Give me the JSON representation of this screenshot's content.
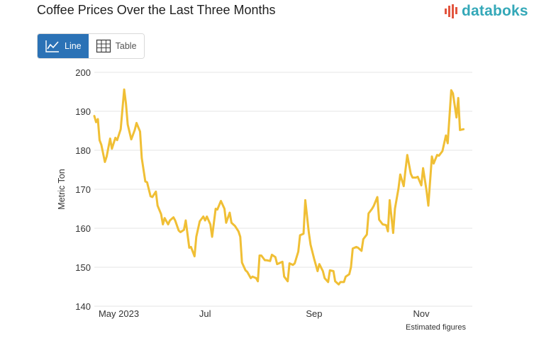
{
  "header": {
    "title": "Coffee Prices Over the Last Three Months",
    "logo_text": "databoks"
  },
  "toggle": {
    "line_label": "Line",
    "table_label": "Table",
    "selected": "Line"
  },
  "colors": {
    "line": "#f0bf35",
    "accent": "#2b72b6",
    "brand": "#34a8b8",
    "logo_mark": "#e2553f",
    "grid": "#e6e6e6"
  },
  "chart_data": {
    "type": "line",
    "ylabel": "Metric Ton",
    "ylim": [
      140,
      200
    ],
    "yticks": [
      "140",
      "150",
      "160",
      "170",
      "180",
      "190",
      "200"
    ],
    "xlim": [
      "2023-04-29",
      "2023-11-30"
    ],
    "xticks": [
      {
        "label": "May 2023",
        "date": "2023-05-01"
      },
      {
        "label": "Jul",
        "date": "2023-07-01"
      },
      {
        "label": "Sep",
        "date": "2023-09-01"
      },
      {
        "label": "Nov",
        "date": "2023-11-01"
      }
    ],
    "grid": true,
    "note": "Estimated figures",
    "series": [
      {
        "values": [
          [
            "2023-04-29",
            188.8
          ],
          [
            "2023-04-30",
            187.2
          ],
          [
            "2023-05-01",
            188.0
          ],
          [
            "2023-05-02",
            182.6
          ],
          [
            "2023-05-03",
            181.4
          ],
          [
            "2023-05-05",
            177.0
          ],
          [
            "2023-05-06",
            178.4
          ],
          [
            "2023-05-08",
            183.0
          ],
          [
            "2023-05-09",
            180.4
          ],
          [
            "2023-05-11",
            183.2
          ],
          [
            "2023-05-12",
            182.6
          ],
          [
            "2023-05-14",
            185.4
          ],
          [
            "2023-05-16",
            195.6
          ],
          [
            "2023-05-17",
            192.0
          ],
          [
            "2023-05-18",
            186.6
          ],
          [
            "2023-05-20",
            182.8
          ],
          [
            "2023-05-22",
            185.2
          ],
          [
            "2023-05-23",
            187.0
          ],
          [
            "2023-05-25",
            184.8
          ],
          [
            "2023-05-26",
            178.0
          ],
          [
            "2023-05-28",
            172.0
          ],
          [
            "2023-05-29",
            171.8
          ],
          [
            "2023-05-31",
            168.2
          ],
          [
            "2023-06-01",
            168.0
          ],
          [
            "2023-06-03",
            169.4
          ],
          [
            "2023-06-04",
            165.8
          ],
          [
            "2023-06-06",
            163.6
          ],
          [
            "2023-06-07",
            161.0
          ],
          [
            "2023-06-08",
            162.6
          ],
          [
            "2023-06-10",
            161.0
          ],
          [
            "2023-06-11",
            162.0
          ],
          [
            "2023-06-13",
            162.8
          ],
          [
            "2023-06-14",
            162.0
          ],
          [
            "2023-06-16",
            159.4
          ],
          [
            "2023-06-17",
            159.0
          ],
          [
            "2023-06-19",
            159.6
          ],
          [
            "2023-06-20",
            162.0
          ],
          [
            "2023-06-22",
            155.0
          ],
          [
            "2023-06-23",
            155.2
          ],
          [
            "2023-06-25",
            152.8
          ],
          [
            "2023-06-26",
            157.8
          ],
          [
            "2023-06-28",
            161.8
          ],
          [
            "2023-06-30",
            163.0
          ],
          [
            "2023-07-01",
            162.0
          ],
          [
            "2023-07-02",
            163.0
          ],
          [
            "2023-07-04",
            161.0
          ],
          [
            "2023-07-05",
            157.8
          ],
          [
            "2023-07-07",
            165.0
          ],
          [
            "2023-07-08",
            164.8
          ],
          [
            "2023-07-10",
            167.0
          ],
          [
            "2023-07-12",
            165.0
          ],
          [
            "2023-07-13",
            161.4
          ],
          [
            "2023-07-15",
            164.0
          ],
          [
            "2023-07-16",
            161.4
          ],
          [
            "2023-07-18",
            160.6
          ],
          [
            "2023-07-20",
            159.2
          ],
          [
            "2023-07-21",
            157.8
          ],
          [
            "2023-07-22",
            151.2
          ],
          [
            "2023-07-24",
            149.2
          ],
          [
            "2023-07-25",
            148.8
          ],
          [
            "2023-07-27",
            147.2
          ],
          [
            "2023-07-28",
            147.6
          ],
          [
            "2023-07-30",
            147.2
          ],
          [
            "2023-07-31",
            146.4
          ],
          [
            "2023-08-01",
            153.0
          ],
          [
            "2023-08-02",
            153.0
          ],
          [
            "2023-08-04",
            151.8
          ],
          [
            "2023-08-05",
            151.8
          ],
          [
            "2023-08-07",
            151.6
          ],
          [
            "2023-08-08",
            153.2
          ],
          [
            "2023-08-10",
            152.6
          ],
          [
            "2023-08-11",
            150.8
          ],
          [
            "2023-08-13",
            151.2
          ],
          [
            "2023-08-14",
            151.4
          ],
          [
            "2023-08-15",
            147.6
          ],
          [
            "2023-08-17",
            146.4
          ],
          [
            "2023-08-18",
            151.0
          ],
          [
            "2023-08-20",
            150.6
          ],
          [
            "2023-08-21",
            151.0
          ],
          [
            "2023-08-23",
            154.0
          ],
          [
            "2023-08-24",
            158.2
          ],
          [
            "2023-08-26",
            158.6
          ],
          [
            "2023-08-27",
            167.2
          ],
          [
            "2023-08-29",
            159.0
          ],
          [
            "2023-08-30",
            155.8
          ],
          [
            "2023-09-01",
            152.2
          ],
          [
            "2023-09-03",
            149.0
          ],
          [
            "2023-09-04",
            150.8
          ],
          [
            "2023-09-06",
            149.0
          ],
          [
            "2023-09-07",
            147.2
          ],
          [
            "2023-09-09",
            146.2
          ],
          [
            "2023-09-10",
            149.2
          ],
          [
            "2023-09-12",
            149.0
          ],
          [
            "2023-09-13",
            146.4
          ],
          [
            "2023-09-15",
            145.6
          ],
          [
            "2023-09-16",
            146.2
          ],
          [
            "2023-09-18",
            146.2
          ],
          [
            "2023-09-19",
            147.6
          ],
          [
            "2023-09-21",
            148.2
          ],
          [
            "2023-09-22",
            150.0
          ],
          [
            "2023-09-23",
            154.8
          ],
          [
            "2023-09-25",
            155.2
          ],
          [
            "2023-09-26",
            155.0
          ],
          [
            "2023-09-28",
            154.2
          ],
          [
            "2023-09-29",
            157.2
          ],
          [
            "2023-10-01",
            158.4
          ],
          [
            "2023-10-02",
            163.8
          ],
          [
            "2023-10-04",
            165.0
          ],
          [
            "2023-10-05",
            165.8
          ],
          [
            "2023-10-07",
            168.0
          ],
          [
            "2023-10-08",
            162.2
          ],
          [
            "2023-10-10",
            161.0
          ],
          [
            "2023-10-12",
            160.8
          ],
          [
            "2023-10-13",
            159.2
          ],
          [
            "2023-10-14",
            167.2
          ],
          [
            "2023-10-16",
            158.8
          ],
          [
            "2023-10-17",
            165.0
          ],
          [
            "2023-10-19",
            170.2
          ],
          [
            "2023-10-20",
            173.8
          ],
          [
            "2023-10-22",
            170.8
          ],
          [
            "2023-10-23",
            175.0
          ],
          [
            "2023-10-24",
            178.8
          ],
          [
            "2023-10-26",
            174.0
          ],
          [
            "2023-10-27",
            173.0
          ],
          [
            "2023-10-29",
            173.0
          ],
          [
            "2023-10-30",
            173.2
          ],
          [
            "2023-11-01",
            171.0
          ],
          [
            "2023-11-02",
            175.4
          ],
          [
            "2023-11-04",
            169.6
          ],
          [
            "2023-11-05",
            165.8
          ],
          [
            "2023-11-07",
            178.4
          ],
          [
            "2023-11-08",
            176.6
          ],
          [
            "2023-11-10",
            178.8
          ],
          [
            "2023-11-11",
            178.6
          ],
          [
            "2023-11-13",
            179.8
          ],
          [
            "2023-11-15",
            183.8
          ],
          [
            "2023-11-16",
            181.8
          ],
          [
            "2023-11-18",
            195.4
          ],
          [
            "2023-11-19",
            194.6
          ],
          [
            "2023-11-21",
            188.4
          ],
          [
            "2023-11-22",
            193.4
          ],
          [
            "2023-11-23",
            185.2
          ],
          [
            "2023-11-25",
            185.4
          ]
        ]
      }
    ]
  }
}
